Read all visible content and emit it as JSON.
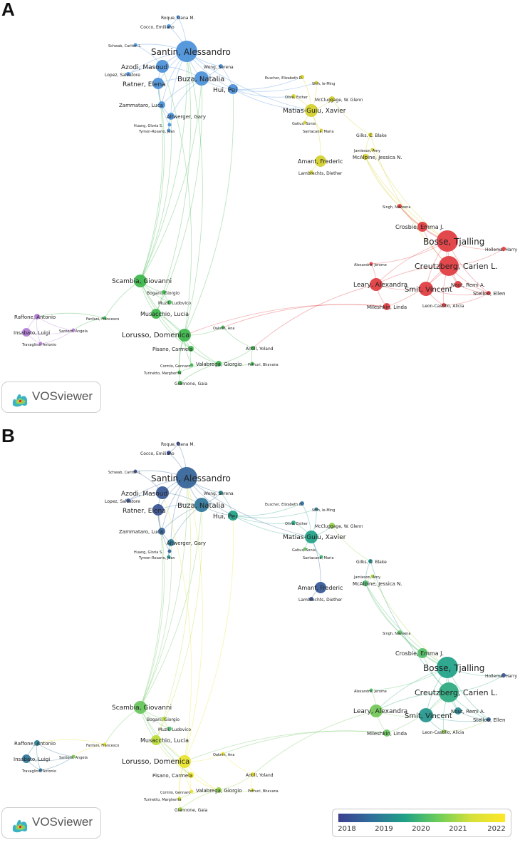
{
  "panels": [
    {
      "letter": "A",
      "mode": "cluster"
    },
    {
      "letter": "B",
      "mode": "overlay"
    }
  ],
  "logo_text": "VOSviewer",
  "legend": {
    "ticks": [
      "2018",
      "2019",
      "2020",
      "2021",
      "2022"
    ]
  },
  "cluster_colors": {
    "blue": "#4a90d9",
    "yellow": "#d4cf2b",
    "red": "#e0393e",
    "green": "#3cb54a",
    "purple": "#b07ad6"
  },
  "nodes": [
    {
      "id": "santin",
      "label": "Santin, Alessandro",
      "cluster": "blue",
      "year": 2018.6
    },
    {
      "id": "buza",
      "label": "Buza, Natalia",
      "cluster": "blue",
      "year": 2018.9
    },
    {
      "id": "azodi",
      "label": "Azodi, Masoud",
      "cluster": "blue",
      "year": 2018.4
    },
    {
      "id": "ratner",
      "label": "Ratner, Elena",
      "cluster": "blue",
      "year": 2018.3
    },
    {
      "id": "hui",
      "label": "Hui, Pei",
      "cluster": "blue",
      "year": 2019.6
    },
    {
      "id": "zammataro",
      "label": "Zammataro, Luca",
      "cluster": "blue",
      "year": 2018.6
    },
    {
      "id": "altwerger",
      "label": "Altwerger, Gary",
      "cluster": "blue",
      "year": 2019.0
    },
    {
      "id": "roque",
      "label": "Roque, Dana M.",
      "cluster": "blue",
      "year": 2018.2
    },
    {
      "id": "cocco",
      "label": "Cocco, Emiliano",
      "cluster": "blue",
      "year": 2018.2
    },
    {
      "id": "schwab",
      "label": "Schwab, Carlton L.",
      "cluster": "blue",
      "year": 2018.3
    },
    {
      "id": "lopez",
      "label": "Lopez, Salvatore",
      "cluster": "blue",
      "year": 2018.3
    },
    {
      "id": "wong",
      "label": "Wong, Serena",
      "cluster": "blue",
      "year": 2019.2
    },
    {
      "id": "huang",
      "label": "Huang, Gloria S.",
      "cluster": "blue",
      "year": 2018.6
    },
    {
      "id": "tymon",
      "label": "Tymon-Rosario, Joan",
      "cluster": "blue",
      "year": 2019.4
    },
    {
      "id": "matias",
      "label": "Matias-Guiu, Xavier",
      "cluster": "yellow",
      "year": 2019.6
    },
    {
      "id": "euscher",
      "label": "Euscher, Elizabeth D.",
      "cluster": "yellow",
      "year": 2018.8
    },
    {
      "id": "shih",
      "label": "Shih, Ie-Ming",
      "cluster": "yellow",
      "year": 2019.0
    },
    {
      "id": "oliva",
      "label": "Oliva, Esther",
      "cluster": "yellow",
      "year": 2019.7
    },
    {
      "id": "mccluggage",
      "label": "McCluggage, W. Glenn",
      "cluster": "yellow",
      "year": 2021.0
    },
    {
      "id": "gatius",
      "label": "Gatius, Sonia",
      "cluster": "yellow",
      "year": 2020.6
    },
    {
      "id": "santacana",
      "label": "Santacana, Maria",
      "cluster": "yellow",
      "year": 2020.1
    },
    {
      "id": "gilks",
      "label": "Gilks, C. Blake",
      "cluster": "yellow",
      "year": 2019.3
    },
    {
      "id": "jamieson",
      "label": "Jamieson, Amy",
      "cluster": "yellow",
      "year": 2021.2
    },
    {
      "id": "mcalpine",
      "label": "McAlpine, Jessica N.",
      "cluster": "yellow",
      "year": 2020.3
    },
    {
      "id": "amant",
      "label": "Amant, Frederic",
      "cluster": "yellow",
      "year": 2018.4
    },
    {
      "id": "lambrechts",
      "label": "Lambrechts, Diether",
      "cluster": "yellow",
      "year": 2018.3
    },
    {
      "id": "singh",
      "label": "Singh, Naveena",
      "cluster": "red",
      "year": 2020.5
    },
    {
      "id": "crosbie",
      "label": "Crosbie, Emma J.",
      "cluster": "red",
      "year": 2020.4
    },
    {
      "id": "bosse",
      "label": "Bosse, Tjalling",
      "cluster": "red",
      "year": 2019.6
    },
    {
      "id": "hollema",
      "label": "Hollema, Harry",
      "cluster": "red",
      "year": 2018.3
    },
    {
      "id": "alexandre",
      "label": "Alexandre, Jerome",
      "cluster": "red",
      "year": 2020.4
    },
    {
      "id": "creutzberg",
      "label": "Creutzberg, Carien L.",
      "cluster": "red",
      "year": 2019.8
    },
    {
      "id": "nout",
      "label": "Nout, Remi A.",
      "cluster": "red",
      "year": 2019.2
    },
    {
      "id": "leary",
      "label": "Leary, Alexandra",
      "cluster": "red",
      "year": 2020.7
    },
    {
      "id": "smit",
      "label": "Smit, Vincent",
      "cluster": "red",
      "year": 2019.4
    },
    {
      "id": "stelloo",
      "label": "Stelloo, Ellen",
      "cluster": "red",
      "year": 2018.5
    },
    {
      "id": "leon",
      "label": "Leon-Castillo, Alicia",
      "cluster": "red",
      "year": 2021.0
    },
    {
      "id": "mileshkin",
      "label": "Mileshkin, Linda",
      "cluster": "red",
      "year": 2020.6
    },
    {
      "id": "scambia",
      "label": "Scambia, Giovanni",
      "cluster": "green",
      "year": 2020.6
    },
    {
      "id": "bogani",
      "label": "Bogani, Giorgio",
      "cluster": "green",
      "year": 2021.3
    },
    {
      "id": "muzii",
      "label": "Muzii, Ludovico",
      "cluster": "green",
      "year": 2020.3
    },
    {
      "id": "fanfani",
      "label": "Fanfani, Francesco",
      "cluster": "green",
      "year": 2021.8
    },
    {
      "id": "musacchio",
      "label": "Musacchio, Lucia",
      "cluster": "green",
      "year": 2021.4
    },
    {
      "id": "lorusso",
      "label": "Lorusso, Domenica",
      "cluster": "green",
      "year": 2021.8
    },
    {
      "id": "oaknin",
      "label": "Oaknin, Ana",
      "cluster": "green",
      "year": 2021.9
    },
    {
      "id": "antill",
      "label": "Antill, Yoland",
      "cluster": "green",
      "year": 2021.9
    },
    {
      "id": "pisano",
      "label": "Pisano, Carmela",
      "cluster": "green",
      "year": 2021.9
    },
    {
      "id": "cormio",
      "label": "Cormio, Gennaro",
      "cluster": "green",
      "year": 2021.8
    },
    {
      "id": "valabrega",
      "label": "Valabrega, Giorgio",
      "cluster": "green",
      "year": 2021.0
    },
    {
      "id": "pothuri",
      "label": "Pothuri, Bhavana",
      "cluster": "green",
      "year": 2021.7
    },
    {
      "id": "turinetto",
      "label": "Turinetto, Margherita",
      "cluster": "green",
      "year": 2021.6
    },
    {
      "id": "giannone",
      "label": "Giannone, Gaia",
      "cluster": "green",
      "year": 2021.2
    },
    {
      "id": "raffone",
      "label": "Raffone, Antonio",
      "cluster": "purple",
      "year": 2019.0
    },
    {
      "id": "insabato",
      "label": "Insabato, Luigi",
      "cluster": "purple",
      "year": 2018.9
    },
    {
      "id": "santoro",
      "label": "Santoro, Angela",
      "cluster": "purple",
      "year": 2020.8
    },
    {
      "id": "travaglino",
      "label": "Travaglino, Antonio",
      "cluster": "purple",
      "year": 2018.8
    }
  ]
}
